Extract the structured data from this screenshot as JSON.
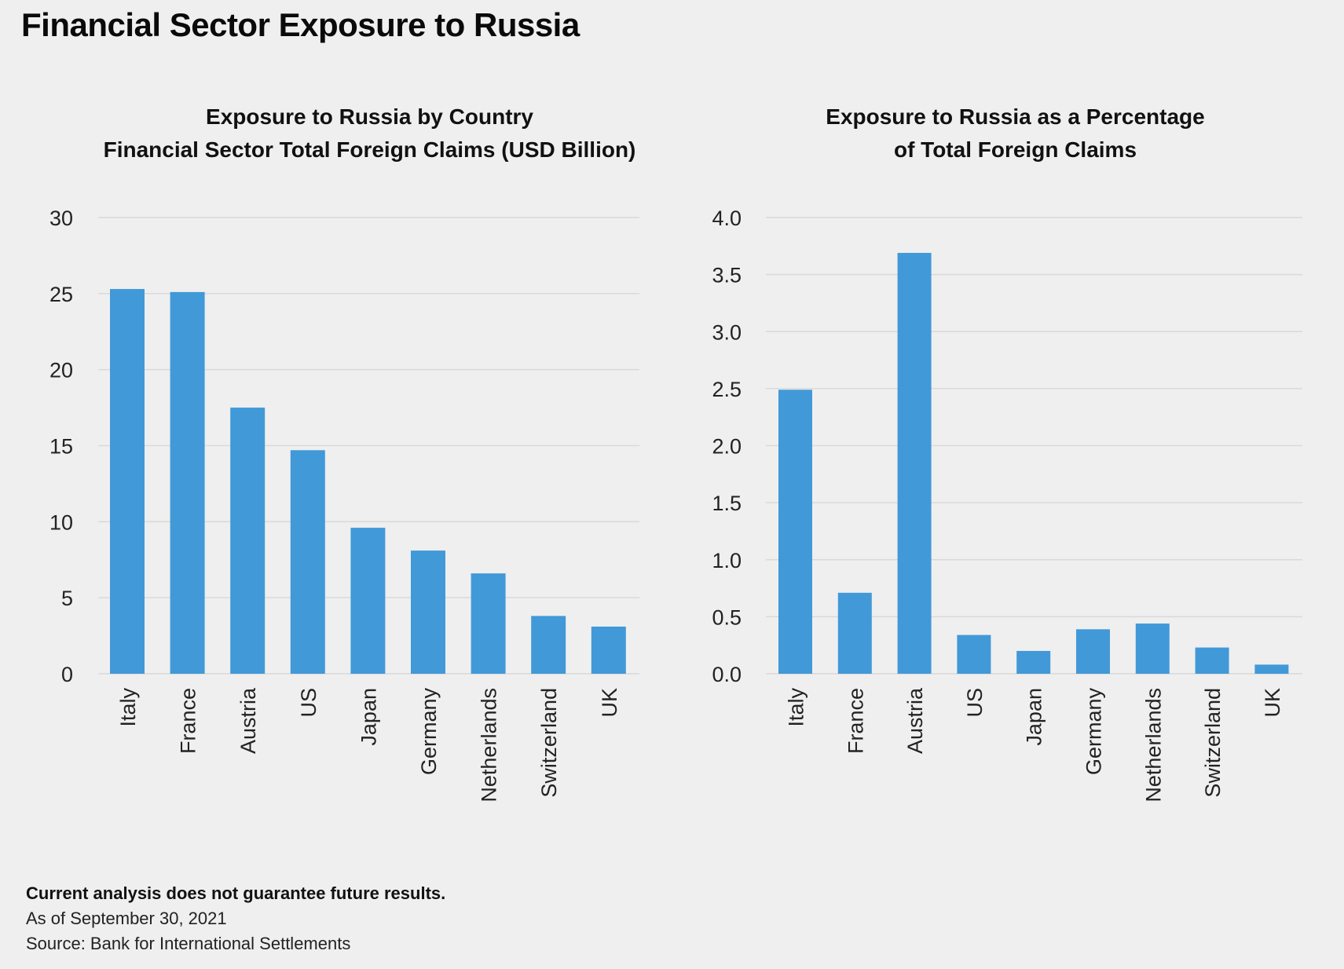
{
  "page": {
    "title": "Financial Sector Exposure to Russia"
  },
  "footer": {
    "disclaimer": "Current analysis does not guarantee future results.",
    "as_of": "As of September 30, 2021",
    "source": "Source: Bank for International Settlements"
  },
  "colors": {
    "bar": "#4199d8",
    "grid": "#d9d9d9",
    "background": "#efefef"
  },
  "chart_data": [
    {
      "type": "bar",
      "title_lines": [
        "Exposure to Russia by Country",
        "Financial Sector Total Foreign Claims (USD Billion)"
      ],
      "categories": [
        "Italy",
        "France",
        "Austria",
        "US",
        "Japan",
        "Germany",
        "Netherlands",
        "Switzerland",
        "UK"
      ],
      "values": [
        25.3,
        25.1,
        17.5,
        14.7,
        9.6,
        8.1,
        6.6,
        3.8,
        3.1
      ],
      "ylim": [
        0,
        30
      ],
      "yticks": [
        "0",
        "5",
        "10",
        "15",
        "20",
        "25",
        "30"
      ],
      "ytick_values": [
        0,
        5,
        10,
        15,
        20,
        25,
        30
      ],
      "grid": true,
      "legend": "none"
    },
    {
      "type": "bar",
      "title_lines": [
        "Exposure to Russia as a Percentage",
        "of Total Foreign Claims"
      ],
      "categories": [
        "Italy",
        "France",
        "Austria",
        "US",
        "Japan",
        "Germany",
        "Netherlands",
        "Switzerland",
        "UK"
      ],
      "values": [
        2.49,
        0.71,
        3.69,
        0.34,
        0.2,
        0.39,
        0.44,
        0.23,
        0.08
      ],
      "ylim": [
        0,
        4.0
      ],
      "yticks": [
        "0.0",
        "0.5",
        "1.0",
        "1.5",
        "2.0",
        "2.5",
        "3.0",
        "3.5",
        "4.0"
      ],
      "ytick_values": [
        0,
        0.5,
        1.0,
        1.5,
        2.0,
        2.5,
        3.0,
        3.5,
        4.0
      ],
      "grid": true,
      "legend": "none"
    }
  ]
}
